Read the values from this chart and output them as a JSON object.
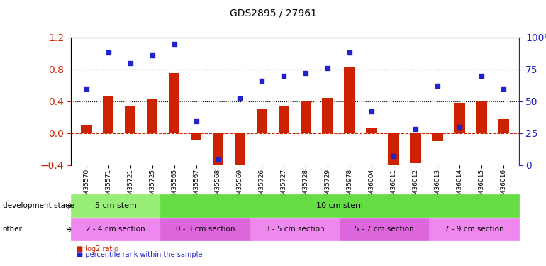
{
  "title": "GDS2895 / 27961",
  "samples": [
    "GSM35570",
    "GSM35571",
    "GSM35721",
    "GSM35725",
    "GSM35565",
    "GSM35567",
    "GSM35568",
    "GSM35569",
    "GSM35726",
    "GSM35727",
    "GSM35728",
    "GSM35729",
    "GSM35978",
    "GSM36004",
    "GSM36011",
    "GSM36012",
    "GSM36013",
    "GSM36014",
    "GSM36015",
    "GSM36016"
  ],
  "log2_ratio": [
    0.1,
    0.47,
    0.33,
    0.43,
    0.75,
    -0.08,
    -0.48,
    -0.5,
    0.3,
    0.33,
    0.4,
    0.44,
    0.82,
    0.06,
    -0.47,
    -0.38,
    -0.1,
    0.38,
    0.4,
    0.17
  ],
  "percentile": [
    0.6,
    0.88,
    0.8,
    0.86,
    0.95,
    0.34,
    0.04,
    0.52,
    0.66,
    0.7,
    0.72,
    0.76,
    0.88,
    0.42,
    0.07,
    0.28,
    0.62,
    0.3,
    0.7,
    0.6
  ],
  "ylim_left": [
    -0.4,
    1.2
  ],
  "ylim_right": [
    0,
    100
  ],
  "yticks_left": [
    -0.4,
    0.0,
    0.4,
    0.8,
    1.2
  ],
  "yticks_right": [
    0,
    25,
    50,
    75,
    100
  ],
  "hlines": [
    0.4,
    0.8
  ],
  "bar_color": "#cc2200",
  "dot_color": "#2222cc",
  "zero_line_color": "#cc2200",
  "dev_stage_groups": [
    {
      "label": "5 cm stem",
      "start": 0,
      "end": 4,
      "color": "#99ee77"
    },
    {
      "label": "10 cm stem",
      "start": 4,
      "end": 20,
      "color": "#66dd44"
    }
  ],
  "other_groups": [
    {
      "label": "2 - 4 cm section",
      "start": 0,
      "end": 4,
      "color": "#ee88ee"
    },
    {
      "label": "0 - 3 cm section",
      "start": 4,
      "end": 8,
      "color": "#dd66dd"
    },
    {
      "label": "3 - 5 cm section",
      "start": 8,
      "end": 12,
      "color": "#ee88ee"
    },
    {
      "label": "5 - 7 cm section",
      "start": 12,
      "end": 16,
      "color": "#dd66dd"
    },
    {
      "label": "7 - 9 cm section",
      "start": 16,
      "end": 20,
      "color": "#ee88ee"
    }
  ],
  "legend_red_label": "log2 ratio",
  "legend_blue_label": "percentile rank within the sample",
  "background_color": "#ffffff",
  "plot_bg_color": "#ffffff",
  "grid_color": "#cccccc"
}
